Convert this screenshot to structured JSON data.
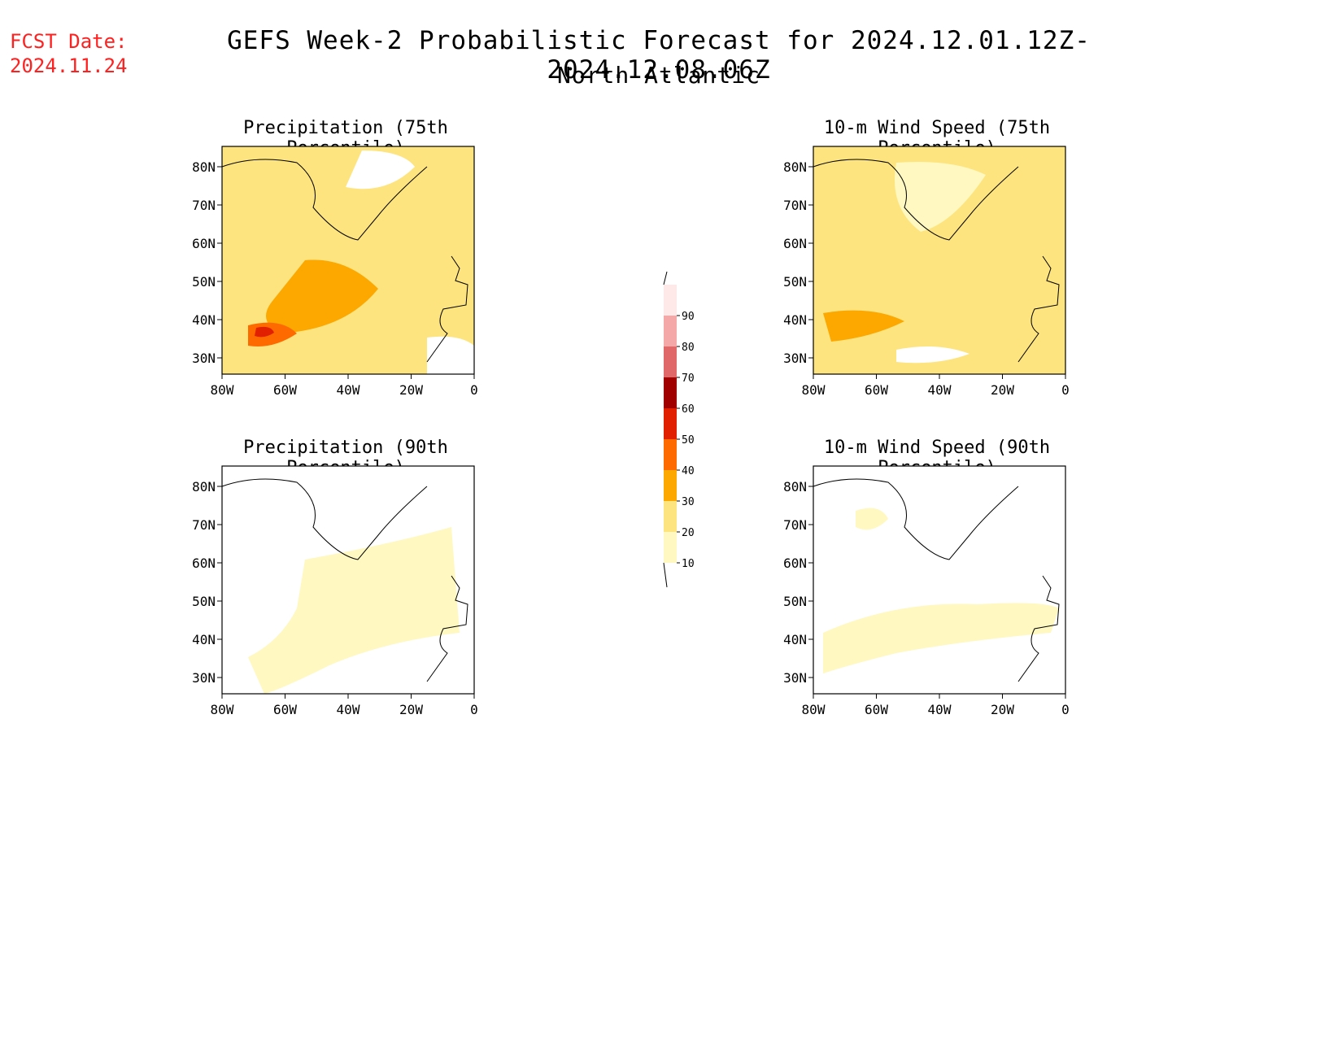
{
  "header": {
    "fcst_label": "FCST Date:",
    "fcst_date": "2024.11.24",
    "title": "GEFS Week-2 Probabilistic Forecast for 2024.12.01.12Z-2024.12.08.06Z",
    "region": "North Atlantic"
  },
  "map_axes": {
    "lat_ticks": [
      "80N",
      "70N",
      "60N",
      "50N",
      "40N",
      "30N"
    ],
    "lon_ticks": [
      "80W",
      "60W",
      "40W",
      "20W",
      "0"
    ]
  },
  "panels": [
    {
      "id": "precip75",
      "title": "Precipitation (75th Percentile)"
    },
    {
      "id": "wind75",
      "title": "10-m Wind Speed (75th Percentile)"
    },
    {
      "id": "precip90",
      "title": "Precipitation (90th Percentile)"
    },
    {
      "id": "wind90",
      "title": "10-m Wind Speed (90th Percentile)"
    }
  ],
  "colorbar": {
    "levels": [
      "10",
      "20",
      "30",
      "40",
      "50",
      "60",
      "70",
      "80",
      "90"
    ],
    "colors": [
      "#fff8c0",
      "#fde47f",
      "#fca800",
      "#ff6a00",
      "#e02000",
      "#a00000",
      "#e06868",
      "#f4a8a8",
      "#ffe8e8"
    ]
  }
}
